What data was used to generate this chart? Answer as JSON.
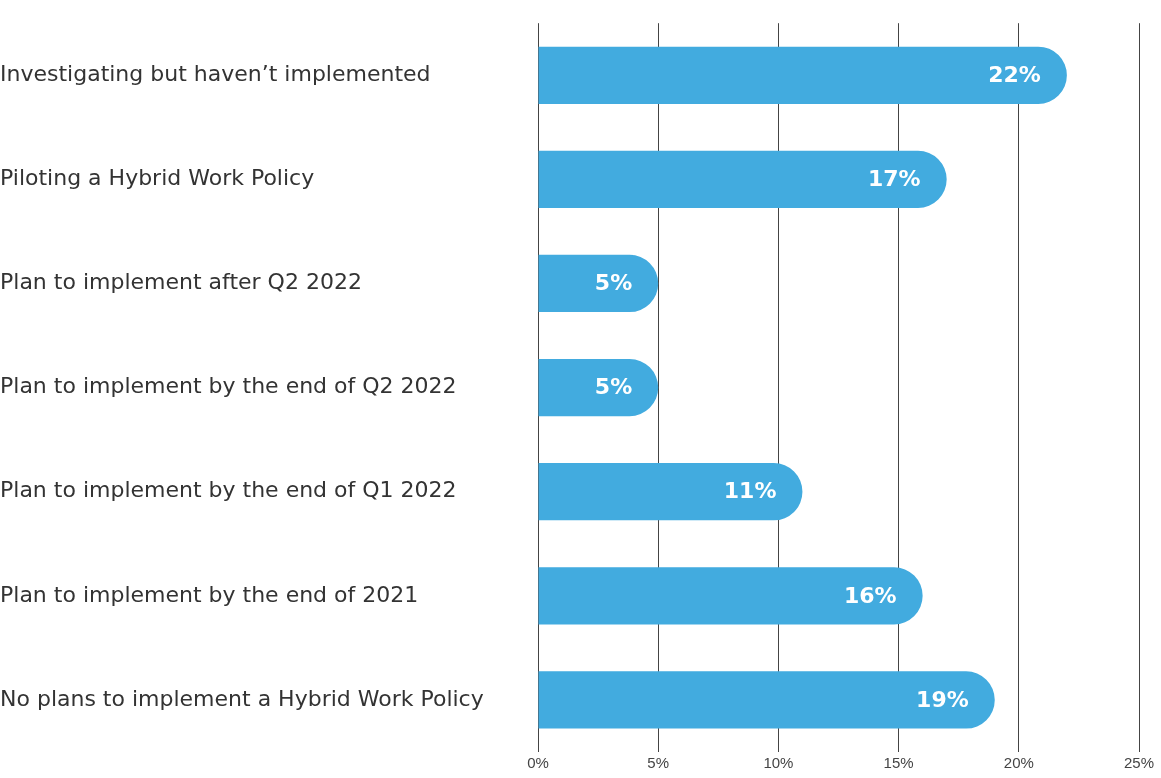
{
  "chart_data": {
    "type": "bar",
    "orientation": "horizontal",
    "categories": [
      "Investigating but haven’t implemented",
      "Piloting a Hybrid Work Policy",
      "Plan to implement after Q2 2022",
      "Plan to implement by the end of Q2 2022",
      "Plan to implement by the end of Q1 2022",
      "Plan to implement by the end of 2021",
      "No plans to implement a Hybrid Work Policy"
    ],
    "values": [
      22,
      17,
      5,
      5,
      11,
      16,
      19
    ],
    "value_labels": [
      "22%",
      "17%",
      "5%",
      "5%",
      "11%",
      "16%",
      "19%"
    ],
    "color": "#42abdf",
    "xlim": [
      0,
      25
    ],
    "xticks": [
      {
        "value": 0,
        "label": "0%"
      },
      {
        "value": 5,
        "label": "5%"
      },
      {
        "value": 10,
        "label": "10%"
      },
      {
        "value": 15,
        "label": "15%"
      },
      {
        "value": 20,
        "label": "20%"
      },
      {
        "value": 25,
        "label": "25%"
      }
    ],
    "grid": "x",
    "legend": false
  }
}
